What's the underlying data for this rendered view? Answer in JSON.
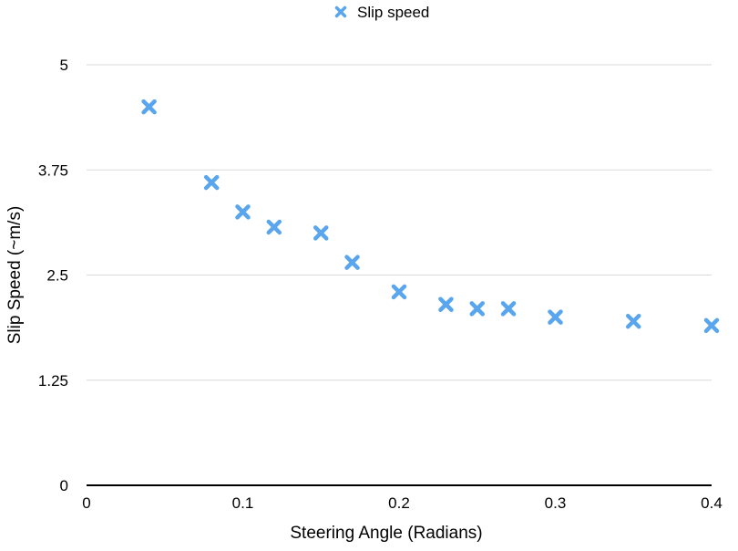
{
  "chart_data": {
    "type": "scatter",
    "xlabel": "Steering Angle (Radians)",
    "ylabel": "Slip Speed (~m/s)",
    "xlim": [
      0,
      0.4
    ],
    "ylim": [
      0,
      5
    ],
    "x_ticks": [
      "0",
      "0.1",
      "0.2",
      "0.3",
      "0.4"
    ],
    "y_ticks": [
      "0",
      "1.25",
      "2.5",
      "3.75",
      "5"
    ],
    "grid": "horizontal",
    "legend_position": "top-center",
    "series": [
      {
        "name": "Slip speed",
        "color": "#5aa6ee",
        "marker": "x",
        "points": [
          {
            "x": 0.04,
            "y": 4.5
          },
          {
            "x": 0.08,
            "y": 3.6
          },
          {
            "x": 0.1,
            "y": 3.25
          },
          {
            "x": 0.12,
            "y": 3.07
          },
          {
            "x": 0.15,
            "y": 3.0
          },
          {
            "x": 0.17,
            "y": 2.65
          },
          {
            "x": 0.2,
            "y": 2.3
          },
          {
            "x": 0.23,
            "y": 2.15
          },
          {
            "x": 0.25,
            "y": 2.1
          },
          {
            "x": 0.27,
            "y": 2.1
          },
          {
            "x": 0.3,
            "y": 2.0
          },
          {
            "x": 0.35,
            "y": 1.95
          },
          {
            "x": 0.4,
            "y": 1.9
          }
        ]
      }
    ]
  }
}
